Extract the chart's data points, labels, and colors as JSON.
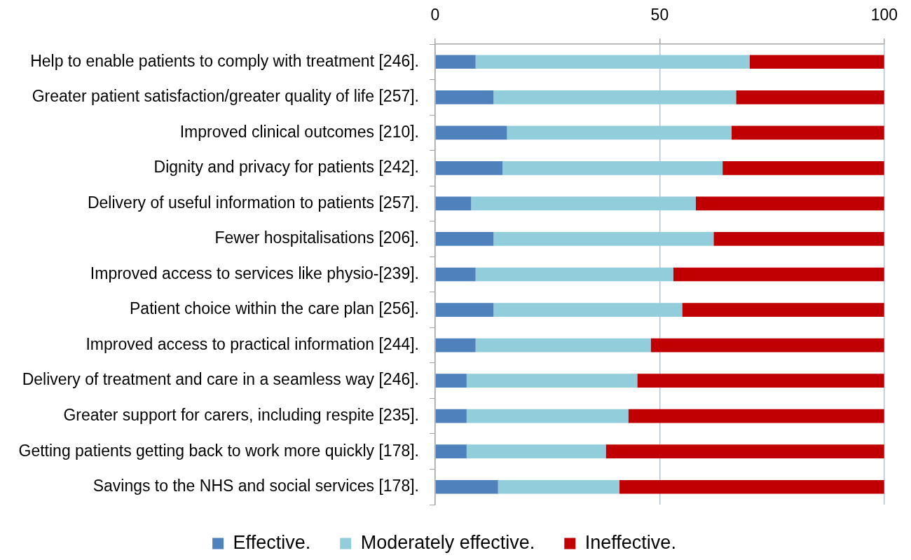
{
  "chart_data": {
    "type": "bar",
    "orientation": "horizontal",
    "stacked": true,
    "categories": [
      "Help to enable patients to comply with treatment [246].",
      "Greater patient satisfaction/greater quality of life [257].",
      "Improved clinical outcomes [210].",
      "Dignity and privacy for patients [242].",
      "Delivery of useful information to patients [257].",
      "Fewer hospitalisations [206].",
      "Improved access to services like physio-[239].",
      "Patient choice within the care plan [256].",
      "Improved access to practical information [244].",
      "Delivery of treatment and care in a seamless way [246].",
      "Greater support for carers, including respite [235].",
      "Getting patients getting back to work more quickly [178].",
      "Savings to the NHS and social services [178]."
    ],
    "series": [
      {
        "name": "Effective.",
        "color": "#4f81bd",
        "values": [
          9,
          13,
          16,
          15,
          8,
          13,
          9,
          13,
          9,
          7,
          7,
          7,
          14
        ]
      },
      {
        "name": "Moderately effective.",
        "color": "#92cddc",
        "values": [
          61,
          54,
          50,
          49,
          50,
          49,
          44,
          42,
          39,
          38,
          36,
          31,
          27
        ]
      },
      {
        "name": "Ineffective.",
        "color": "#c00000",
        "values": [
          30,
          33,
          34,
          36,
          42,
          38,
          47,
          45,
          52,
          55,
          57,
          62,
          59
        ]
      }
    ],
    "xlim": [
      0,
      100
    ],
    "xticks": [
      0,
      50,
      100
    ],
    "grid": "x",
    "legend": "bottom"
  }
}
